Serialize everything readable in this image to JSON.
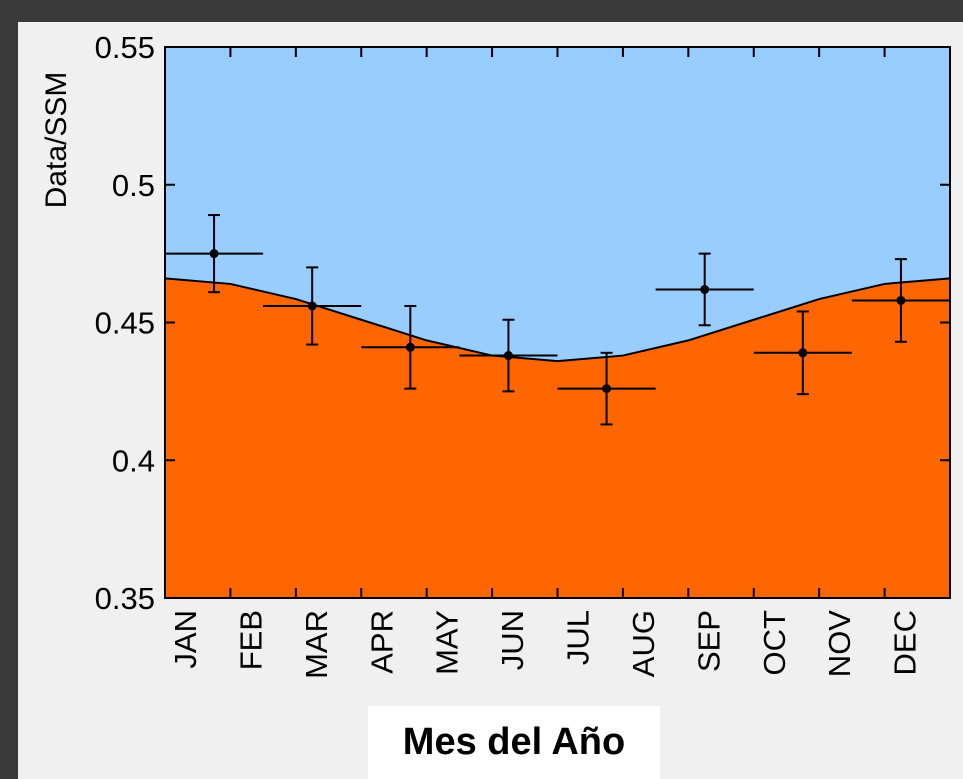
{
  "chart_data": {
    "type": "scatter",
    "y_label": "Data/SSM",
    "x_label": "Mes del Año",
    "xlim": [
      0,
      12
    ],
    "ylim": [
      0.35,
      0.55
    ],
    "xticks": [
      {
        "value": 0,
        "label": "JAN"
      },
      {
        "value": 1,
        "label": "FEB"
      },
      {
        "value": 2,
        "label": "MAR"
      },
      {
        "value": 3,
        "label": "APR"
      },
      {
        "value": 4,
        "label": "MAY"
      },
      {
        "value": 5,
        "label": "JUN"
      },
      {
        "value": 6,
        "label": "JUL"
      },
      {
        "value": 7,
        "label": "AUG"
      },
      {
        "value": 8,
        "label": "SEP"
      },
      {
        "value": 9,
        "label": "OCT"
      },
      {
        "value": 10,
        "label": "NOV"
      },
      {
        "value": 11,
        "label": "DEC"
      }
    ],
    "yticks": [
      0.35,
      0.4,
      0.45,
      0.5,
      0.55
    ],
    "points": {
      "color": "#000000",
      "x": [
        0.75,
        2.25,
        3.75,
        5.25,
        6.75,
        8.25,
        9.75,
        11.25
      ],
      "xerr": [
        0.75,
        0.75,
        0.75,
        0.75,
        0.75,
        0.75,
        0.75,
        0.75
      ],
      "y": [
        0.475,
        0.456,
        0.441,
        0.438,
        0.426,
        0.462,
        0.439,
        0.458
      ],
      "yerr": [
        0.014,
        0.014,
        0.015,
        0.013,
        0.013,
        0.013,
        0.015,
        0.015
      ]
    },
    "curve": {
      "color": "#000000",
      "fill_below": "#ff6600",
      "fill_above": "#99ccff",
      "x": [
        0,
        1,
        2,
        3,
        4,
        5,
        6,
        7,
        8,
        9,
        10,
        11,
        12
      ],
      "y": [
        0.466,
        0.464,
        0.4585,
        0.451,
        0.4435,
        0.438,
        0.436,
        0.438,
        0.4435,
        0.451,
        0.4585,
        0.464,
        0.466
      ]
    }
  }
}
